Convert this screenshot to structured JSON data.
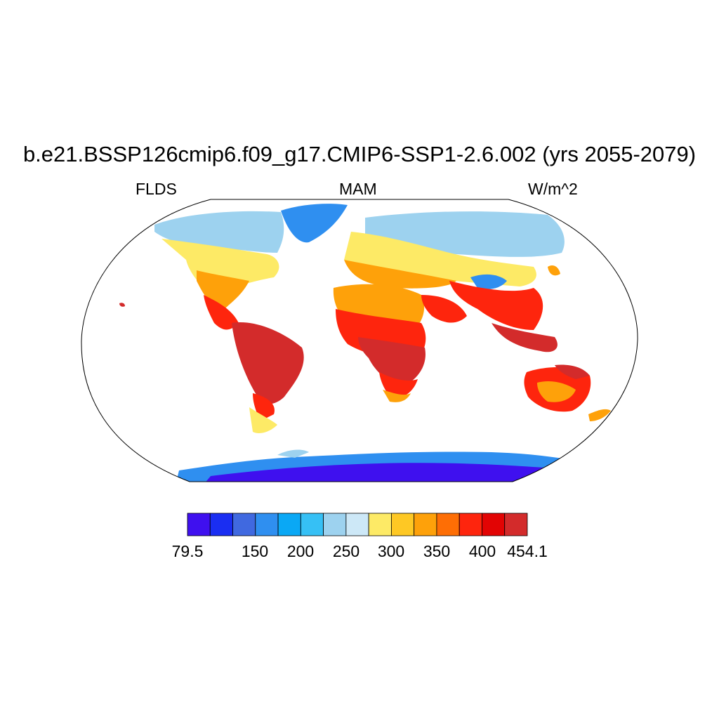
{
  "title": "b.e21.BSSP126cmip6.f09_g17.CMIP6-SSP1-2.6.002 (yrs 2055-2079)",
  "variable": "FLDS",
  "season": "MAM",
  "units": "W/m^2",
  "colorbar": {
    "min": 79.5,
    "max": 454.1,
    "tick_labels": [
      "79.5",
      "150",
      "200",
      "250",
      "300",
      "350",
      "400",
      "454.1"
    ],
    "colors": [
      "#3f10ef",
      "#1a2ef2",
      "#4069e0",
      "#2f8ff0",
      "#0aa8f5",
      "#36c0f5",
      "#9dd2ef",
      "#cde8f7",
      "#fdea66",
      "#fec824",
      "#fea10a",
      "#fe6e05",
      "#fe250d",
      "#e20404",
      "#d32b2b"
    ]
  },
  "map": {
    "projection": "Robinson",
    "continent_colors": {
      "arctic": "#9dd2ef",
      "greenland": "#2f8ff0",
      "antarctica": "#3f10ef",
      "antarctica_edge": "#2f8ff0",
      "temperate": "#fdea66",
      "warm": "#fea10a",
      "hot": "#fe250d",
      "tropics": "#d32b2b",
      "tibet": "#2f8ff0"
    }
  }
}
